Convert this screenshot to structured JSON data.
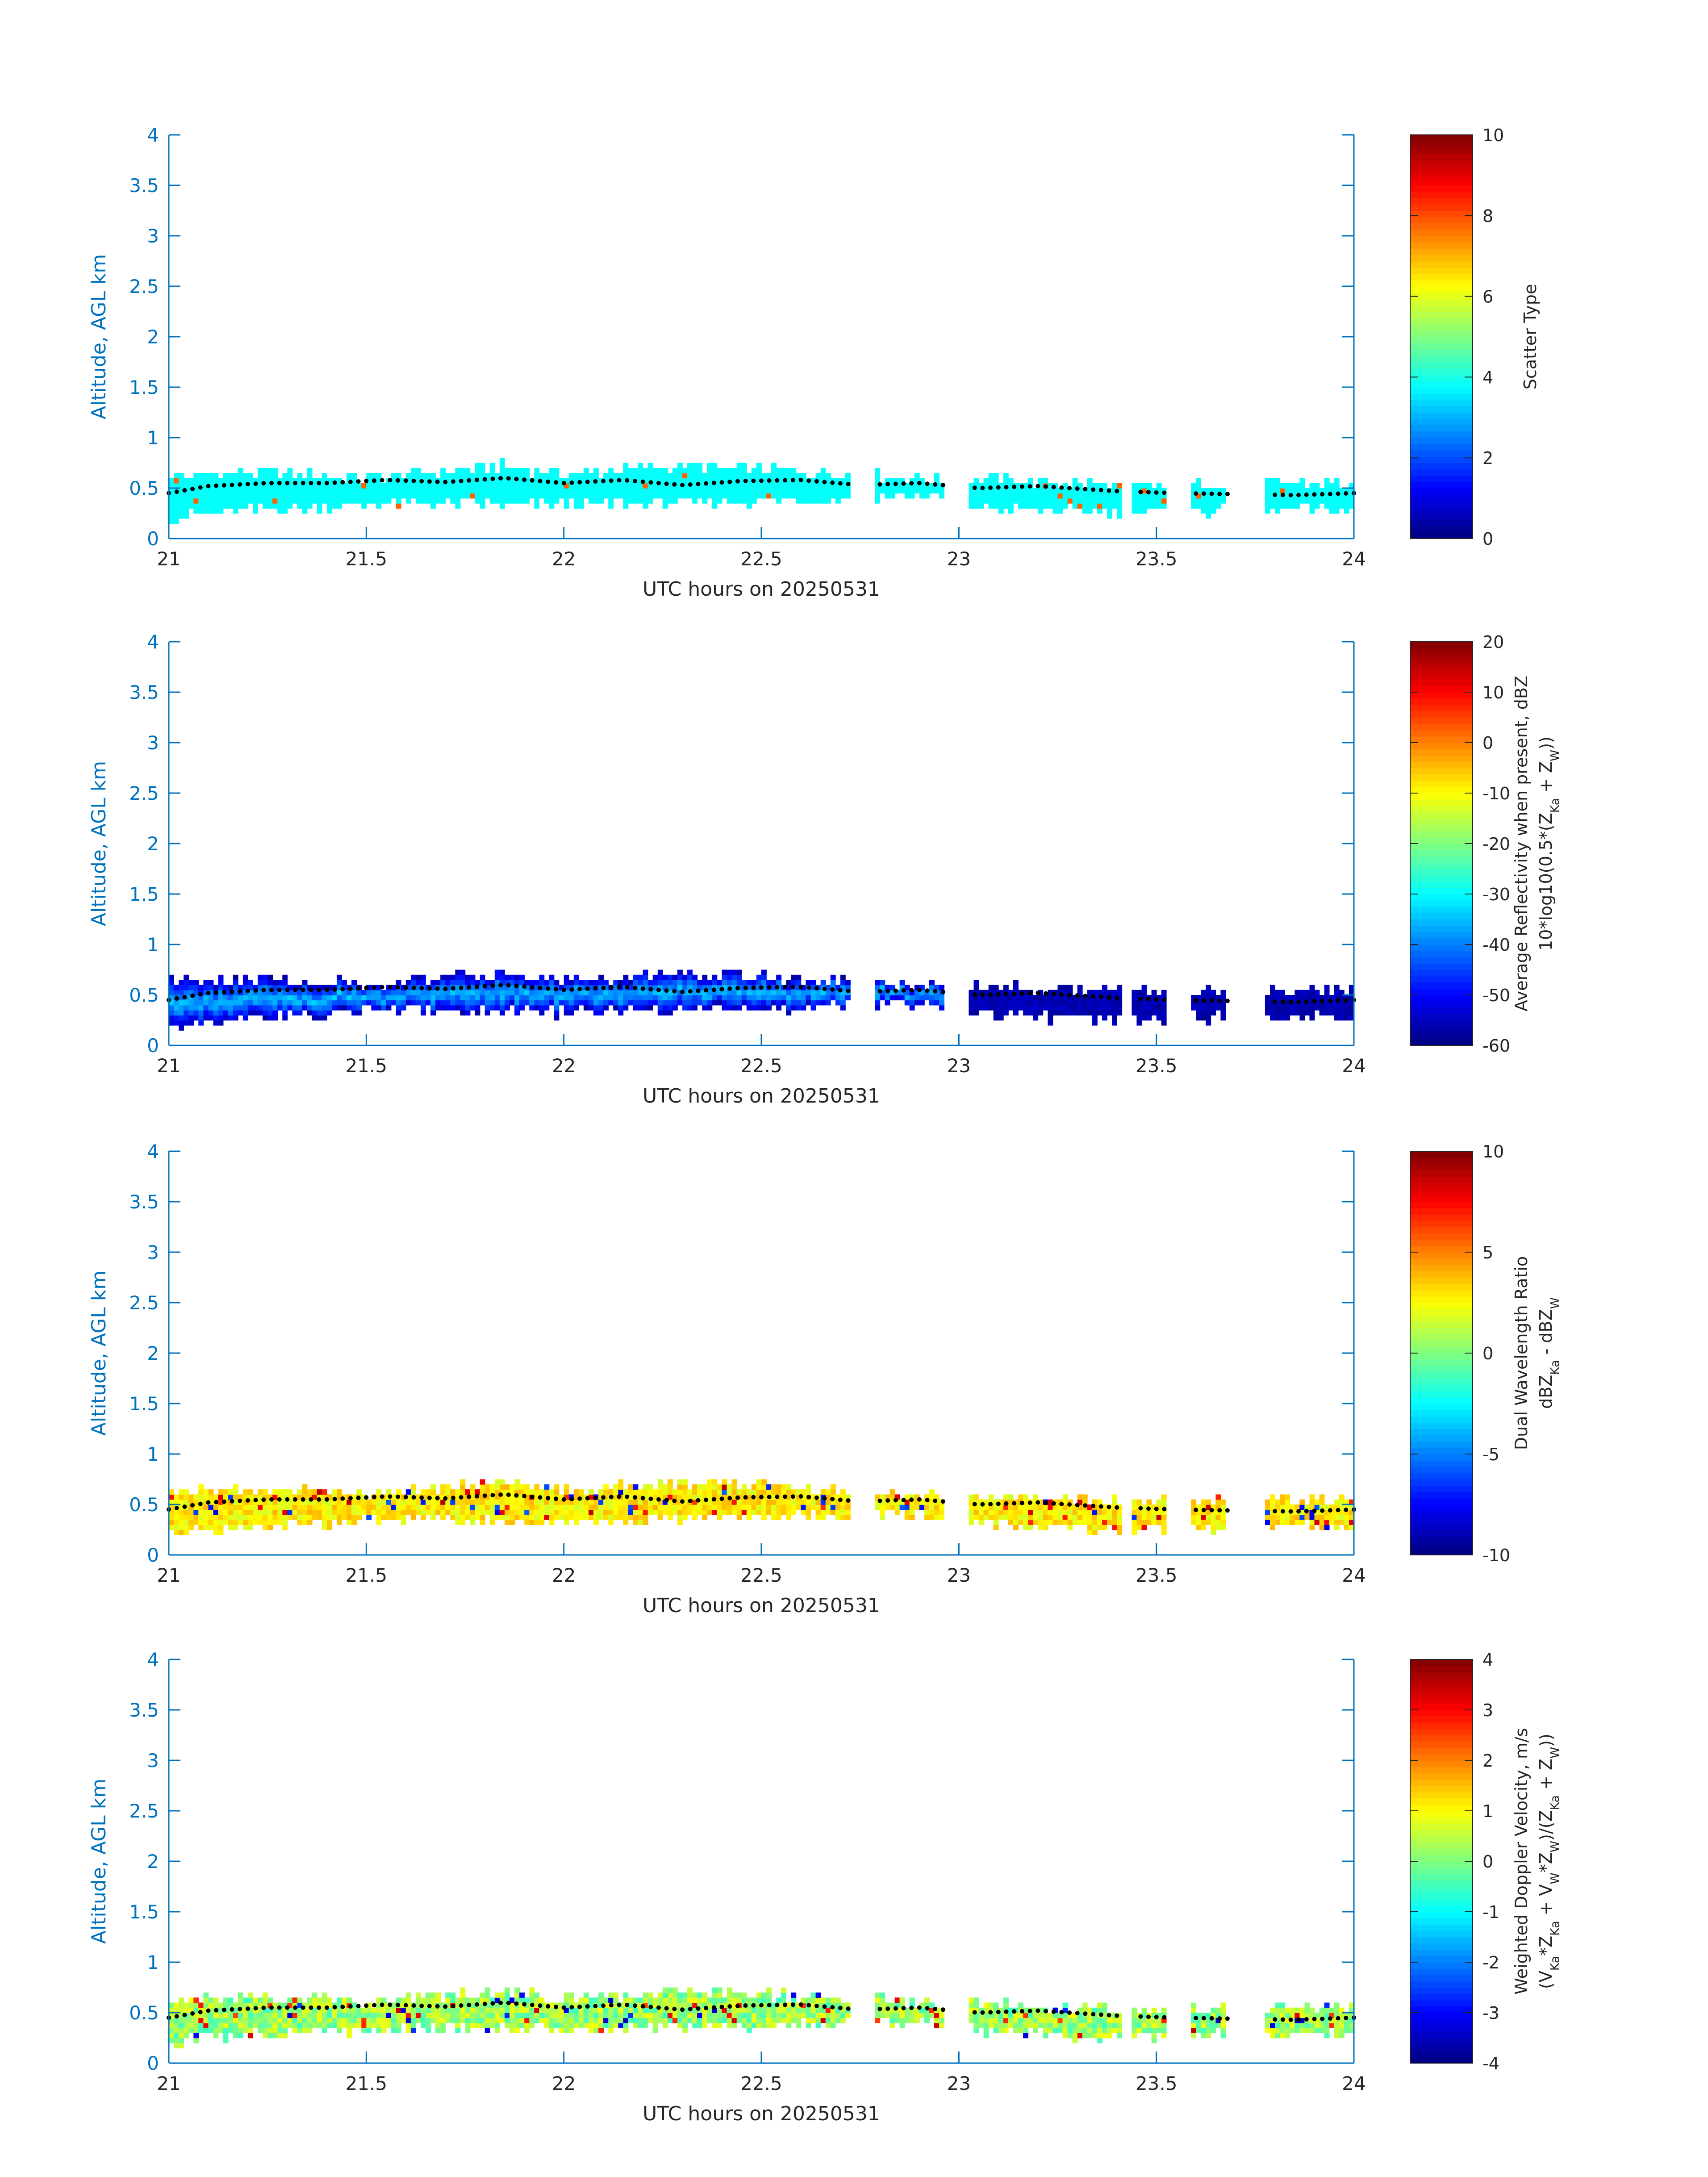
{
  "figure": {
    "background": "#ffffff",
    "axis_color": "#0072BD",
    "text_color": "#262626",
    "dot_color": "#000000"
  },
  "chart_data": [
    {
      "type": "heatmap",
      "title": "",
      "xlabel": "UTC hours on 20250531",
      "ylabel": "Altitude, AGL km",
      "xlim": [
        21,
        24
      ],
      "ylim": [
        0,
        4
      ],
      "xticks": [
        "21",
        "21.5",
        "22",
        "22.5",
        "23",
        "23.5",
        "24"
      ],
      "yticks": [
        "0",
        "0.5",
        "1",
        "1.5",
        "2",
        "2.5",
        "3",
        "3.5",
        "4"
      ],
      "grid": false,
      "colorbar": {
        "label_lines": [
          "Scatter Type"
        ],
        "ticks": [
          "0",
          "2",
          "4",
          "6",
          "8",
          "10"
        ],
        "clim": [
          0,
          10
        ],
        "colormap": "jet"
      },
      "cloud_layer": {
        "value": 3.8,
        "spike_value": 7.8,
        "top_km": 0.65,
        "base_km": 0.28
      }
    },
    {
      "type": "heatmap",
      "title": "",
      "xlabel": "UTC hours on 20250531",
      "ylabel": "Altitude, AGL km",
      "xlim": [
        21,
        24
      ],
      "ylim": [
        0,
        4
      ],
      "xticks": [
        "21",
        "21.5",
        "22",
        "22.5",
        "23",
        "23.5",
        "24"
      ],
      "yticks": [
        "0",
        "0.5",
        "1",
        "1.5",
        "2",
        "2.5",
        "3",
        "3.5",
        "4"
      ],
      "grid": false,
      "colorbar": {
        "label_lines": [
          "Average Reflectivity when present, dBZ",
          "10*log10(0.5*(Z_Ka + Z_W))"
        ],
        "ticks": [
          "-60",
          "-50",
          "-40",
          "-30",
          "-20",
          "-10",
          "0",
          "10",
          "20"
        ],
        "clim": [
          -60,
          20
        ],
        "colormap": "jet"
      },
      "cloud_layer": {
        "center_value": -36,
        "edge_value": -56,
        "top_km": 0.72,
        "base_km": 0.22
      }
    },
    {
      "type": "heatmap",
      "title": "",
      "xlabel": "UTC hours on 20250531",
      "ylabel": "Altitude, AGL km",
      "xlim": [
        21,
        24
      ],
      "ylim": [
        0,
        4
      ],
      "xticks": [
        "21",
        "21.5",
        "22",
        "22.5",
        "23",
        "23.5",
        "24"
      ],
      "yticks": [
        "0",
        "0.5",
        "1",
        "1.5",
        "2",
        "2.5",
        "3",
        "3.5",
        "4"
      ],
      "grid": false,
      "colorbar": {
        "label_lines": [
          "Dual Wavelength Ratio",
          "dBZ_Ka - dBZ_W"
        ],
        "ticks": [
          "-10",
          "-5",
          "0",
          "5",
          "10"
        ],
        "clim": [
          -10,
          10
        ],
        "colormap": "jet"
      },
      "cloud_layer": {
        "typical_value": 2.8,
        "range": [
          -8,
          9
        ],
        "top_km": 0.7,
        "base_km": 0.3
      }
    },
    {
      "type": "heatmap",
      "title": "",
      "xlabel": "UTC hours on 20250531",
      "ylabel": "Altitude, AGL km",
      "xlim": [
        21,
        24
      ],
      "ylim": [
        0,
        4
      ],
      "xticks": [
        "21",
        "21.5",
        "22",
        "22.5",
        "23",
        "23.5",
        "24"
      ],
      "yticks": [
        "0",
        "0.5",
        "1",
        "1.5",
        "2",
        "2.5",
        "3",
        "3.5",
        "4"
      ],
      "grid": false,
      "colorbar": {
        "label_lines": [
          "Weighted Doppler Velocity, m/s",
          "(V_Ka*Z_Ka + V_W*Z_W)/(Z_Ka + Z_W))"
        ],
        "ticks": [
          "-4",
          "-3",
          "-2",
          "-1",
          "0",
          "1",
          "2",
          "3",
          "4"
        ],
        "clim": [
          -4,
          4
        ],
        "colormap": "jet"
      },
      "cloud_layer": {
        "typical_value": 0.2,
        "range": [
          -3.5,
          3.5
        ],
        "top_km": 0.7,
        "base_km": 0.25
      }
    }
  ],
  "shared_data": {
    "cloud_segments_hours": [
      [
        21.0,
        22.72
      ],
      [
        22.79,
        22.96
      ],
      [
        23.03,
        23.41
      ],
      [
        23.44,
        23.52
      ],
      [
        23.59,
        23.68
      ],
      [
        23.78,
        24.0
      ]
    ],
    "cloud_top_km": [
      [
        21.0,
        0.62
      ],
      [
        21.25,
        0.66
      ],
      [
        21.5,
        0.6
      ],
      [
        21.85,
        0.72
      ],
      [
        22.0,
        0.64
      ],
      [
        22.3,
        0.72
      ],
      [
        22.6,
        0.66
      ],
      [
        22.9,
        0.6
      ],
      [
        23.1,
        0.58
      ],
      [
        23.5,
        0.52
      ],
      [
        23.8,
        0.56
      ],
      [
        24.0,
        0.55
      ]
    ],
    "cloud_base_km": [
      [
        21.0,
        0.22
      ],
      [
        21.3,
        0.3
      ],
      [
        21.6,
        0.35
      ],
      [
        22.0,
        0.33
      ],
      [
        22.3,
        0.36
      ],
      [
        22.6,
        0.38
      ],
      [
        22.9,
        0.42
      ],
      [
        23.1,
        0.3
      ],
      [
        23.4,
        0.25
      ],
      [
        23.6,
        0.27
      ],
      [
        23.8,
        0.28
      ],
      [
        24.0,
        0.28
      ]
    ],
    "dotted_line_km": [
      [
        21.0,
        0.45
      ],
      [
        21.1,
        0.52
      ],
      [
        21.25,
        0.55
      ],
      [
        21.4,
        0.55
      ],
      [
        21.55,
        0.58
      ],
      [
        21.7,
        0.56
      ],
      [
        21.85,
        0.6
      ],
      [
        22.0,
        0.55
      ],
      [
        22.15,
        0.58
      ],
      [
        22.3,
        0.53
      ],
      [
        22.45,
        0.57
      ],
      [
        22.6,
        0.58
      ],
      [
        22.75,
        0.53
      ],
      [
        22.9,
        0.55
      ],
      [
        23.05,
        0.5
      ],
      [
        23.2,
        0.52
      ],
      [
        23.4,
        0.47
      ],
      [
        23.55,
        0.45
      ],
      [
        23.7,
        0.44
      ],
      [
        23.85,
        0.43
      ],
      [
        24.0,
        0.45
      ]
    ]
  }
}
